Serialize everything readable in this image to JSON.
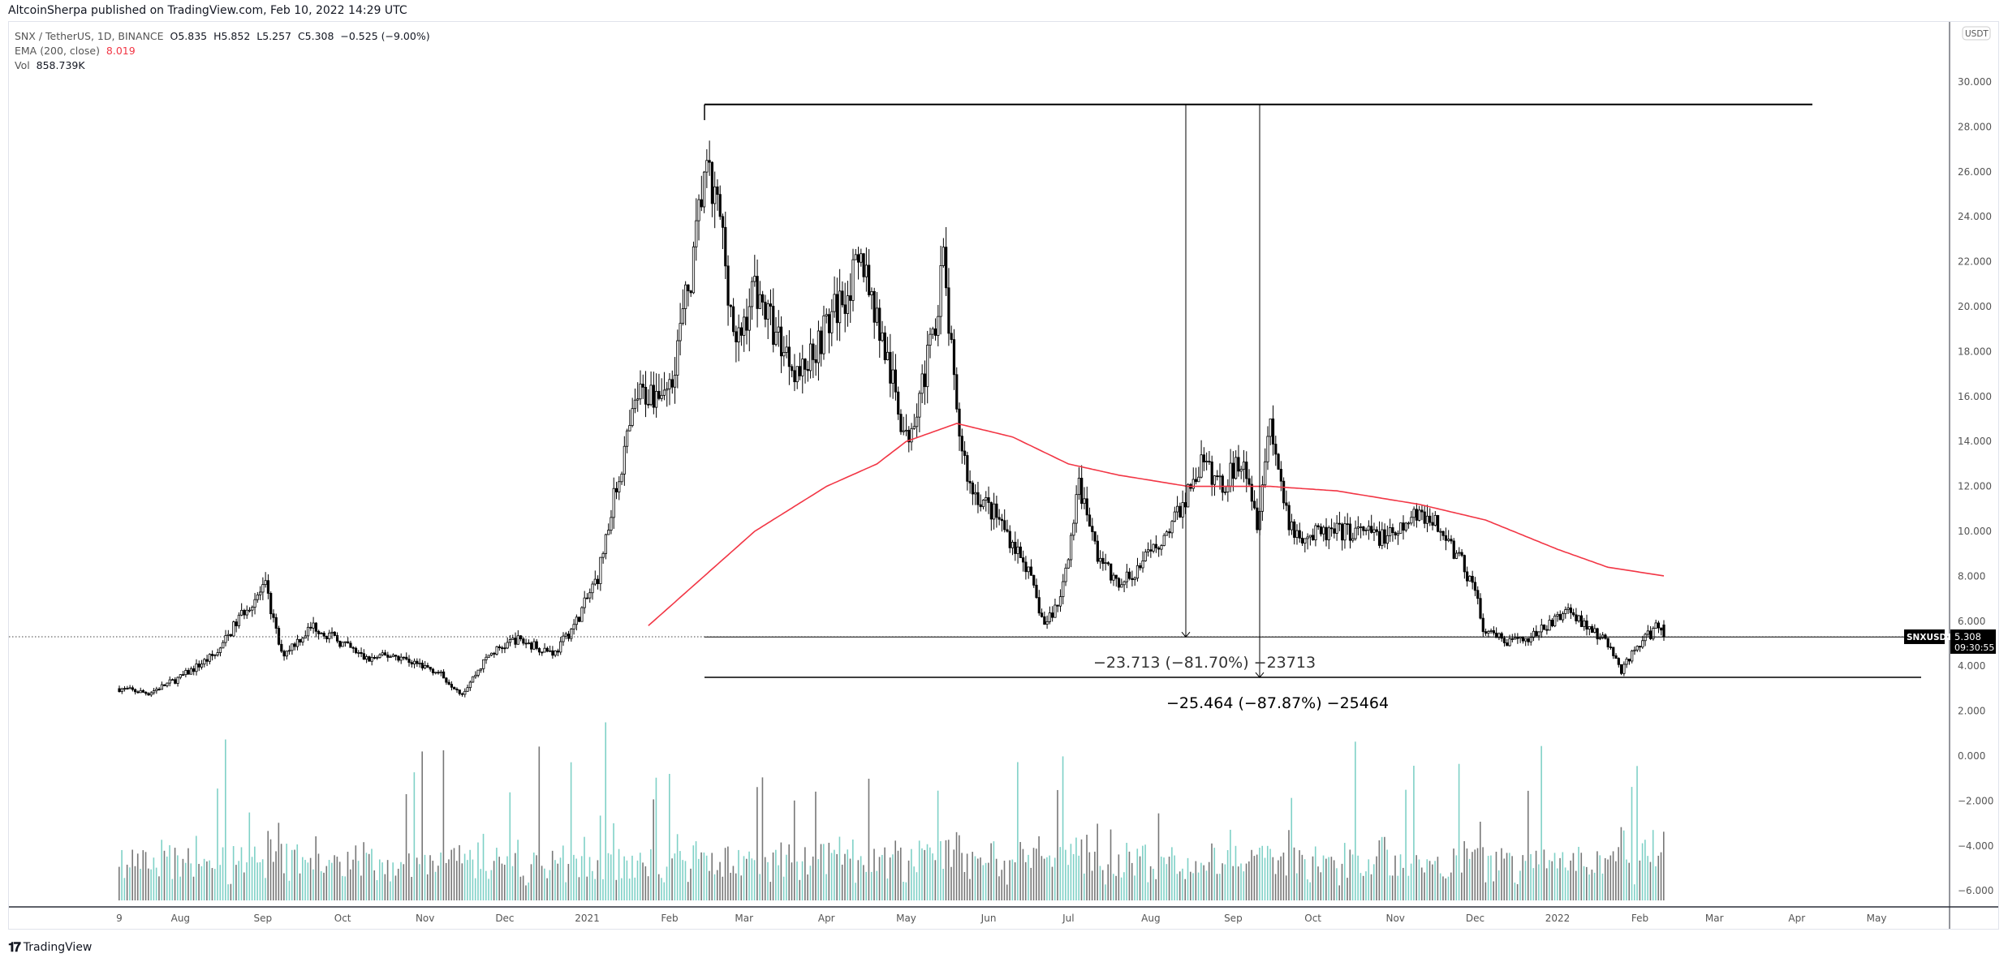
{
  "header": {
    "published": "AltcoinSherpa published on TradingView.com, Feb 10, 2022 14:29 UTC"
  },
  "legend": {
    "symbol": "SNX / TetherUS, 1D, BINANCE",
    "open": "O5.835",
    "high": "H5.852",
    "low": "L5.257",
    "close": "C5.308",
    "change": "−0.525 (−9.00%)",
    "ema_label": "EMA (200, close)",
    "ema_value": "8.019",
    "vol_label": "Vol",
    "vol_value": "858.739K"
  },
  "price_axis": {
    "currency_badge": "USDT",
    "ticks": [
      "30.000",
      "28.000",
      "26.000",
      "24.000",
      "22.000",
      "20.000",
      "18.000",
      "16.000",
      "14.000",
      "12.000",
      "10.000",
      "8.000",
      "6.000",
      "4.000",
      "2.000",
      "0.000",
      "−2.000",
      "−4.000",
      "−6.000"
    ],
    "symbol_tag": "SNXUSDT",
    "last_price": "5.308",
    "countdown": "09:30:55"
  },
  "time_axis": {
    "ticks": [
      {
        "label": "9",
        "date": "2020-07-09"
      },
      {
        "label": "Aug",
        "date": "2020-08-01"
      },
      {
        "label": "Sep",
        "date": "2020-09-01"
      },
      {
        "label": "Oct",
        "date": "2020-10-01"
      },
      {
        "label": "Nov",
        "date": "2020-11-01"
      },
      {
        "label": "Dec",
        "date": "2020-12-01"
      },
      {
        "label": "2021",
        "date": "2021-01-01"
      },
      {
        "label": "Feb",
        "date": "2021-02-01"
      },
      {
        "label": "Mar",
        "date": "2021-03-01"
      },
      {
        "label": "Apr",
        "date": "2021-04-01"
      },
      {
        "label": "May",
        "date": "2021-05-01"
      },
      {
        "label": "Jun",
        "date": "2021-06-01"
      },
      {
        "label": "Jul",
        "date": "2021-07-01"
      },
      {
        "label": "Aug",
        "date": "2021-08-01"
      },
      {
        "label": "Sep",
        "date": "2021-09-01"
      },
      {
        "label": "Oct",
        "date": "2021-10-01"
      },
      {
        "label": "Nov",
        "date": "2021-11-01"
      },
      {
        "label": "Dec",
        "date": "2021-12-01"
      },
      {
        "label": "2022",
        "date": "2022-01-01"
      },
      {
        "label": "Feb",
        "date": "2022-02-01"
      },
      {
        "label": "Mar",
        "date": "2022-03-01"
      },
      {
        "label": "Apr",
        "date": "2022-04-01"
      },
      {
        "label": "May",
        "date": "2022-05-01"
      }
    ]
  },
  "drawings": {
    "top_level": 29.0,
    "mid_level": 5.3,
    "bottom_level": 3.5,
    "measure_1": {
      "label": "−23.713 (−81.70%) −23713",
      "date": "2021-08-17"
    },
    "measure_2": {
      "label": "−25.464 (−87.87%) −25464",
      "date": "2021-09-14"
    }
  },
  "footer": {
    "brand": "TradingView"
  },
  "colors": {
    "candle": "#000000",
    "ema": "#f23645",
    "volume_up": "#7fd1c7",
    "volume_down": "#777777",
    "grid": "#e0e3eb"
  },
  "chart_data": {
    "type": "candlestick",
    "symbol": "SNX / TetherUS",
    "interval": "1D",
    "ylim": [
      -7,
      31
    ],
    "grid": false,
    "price_path": [
      [
        "2020-07-09",
        3.0
      ],
      [
        "2020-07-20",
        2.8
      ],
      [
        "2020-08-01",
        3.5
      ],
      [
        "2020-08-15",
        4.6
      ],
      [
        "2020-08-25",
        6.5
      ],
      [
        "2020-09-02",
        7.5
      ],
      [
        "2020-09-08",
        4.5
      ],
      [
        "2020-09-20",
        5.8
      ],
      [
        "2020-10-01",
        5.0
      ],
      [
        "2020-10-10",
        4.3
      ],
      [
        "2020-10-20",
        4.5
      ],
      [
        "2020-11-05",
        3.8
      ],
      [
        "2020-11-15",
        2.8
      ],
      [
        "2020-11-25",
        4.5
      ],
      [
        "2020-12-05",
        5.2
      ],
      [
        "2020-12-20",
        4.6
      ],
      [
        "2020-12-28",
        6.0
      ],
      [
        "2021-01-05",
        8.0
      ],
      [
        "2021-01-12",
        12.0
      ],
      [
        "2021-01-20",
        16.0
      ],
      [
        "2021-02-01",
        16.5
      ],
      [
        "2021-02-10",
        22.0
      ],
      [
        "2021-02-14",
        26.0
      ],
      [
        "2021-02-20",
        24.0
      ],
      [
        "2021-02-26",
        18.0
      ],
      [
        "2021-03-05",
        21.0
      ],
      [
        "2021-03-12",
        19.0
      ],
      [
        "2021-03-22",
        17.0
      ],
      [
        "2021-04-05",
        20.0
      ],
      [
        "2021-04-15",
        22.0
      ],
      [
        "2021-04-25",
        17.0
      ],
      [
        "2021-05-01",
        14.0
      ],
      [
        "2021-05-10",
        18.0
      ],
      [
        "2021-05-15",
        22.0
      ],
      [
        "2021-05-20",
        15.0
      ],
      [
        "2021-05-25",
        12.0
      ],
      [
        "2021-06-05",
        10.5
      ],
      [
        "2021-06-15",
        8.5
      ],
      [
        "2021-06-22",
        5.8
      ],
      [
        "2021-06-28",
        7.0
      ],
      [
        "2021-07-05",
        12.0
      ],
      [
        "2021-07-12",
        9.0
      ],
      [
        "2021-07-20",
        7.5
      ],
      [
        "2021-08-01",
        9.0
      ],
      [
        "2021-08-10",
        10.5
      ],
      [
        "2021-08-20",
        13.0
      ],
      [
        "2021-08-28",
        12.0
      ],
      [
        "2021-09-05",
        13.5
      ],
      [
        "2021-09-10",
        10.5
      ],
      [
        "2021-09-15",
        15.0
      ],
      [
        "2021-09-22",
        10.0
      ],
      [
        "2021-10-01",
        9.8
      ],
      [
        "2021-10-15",
        10.0
      ],
      [
        "2021-11-01",
        9.7
      ],
      [
        "2021-11-10",
        11.0
      ],
      [
        "2021-11-20",
        9.8
      ],
      [
        "2021-12-01",
        7.5
      ],
      [
        "2021-12-04",
        5.5
      ],
      [
        "2021-12-15",
        5.0
      ],
      [
        "2021-12-25",
        5.5
      ],
      [
        "2022-01-05",
        6.5
      ],
      [
        "2022-01-10",
        6.0
      ],
      [
        "2022-01-20",
        5.0
      ],
      [
        "2022-01-25",
        3.8
      ],
      [
        "2022-02-01",
        5.0
      ],
      [
        "2022-02-08",
        5.8
      ],
      [
        "2022-02-10",
        5.308
      ]
    ],
    "ema_200": [
      [
        "2021-01-24",
        5.8
      ],
      [
        "2021-03-05",
        10.0
      ],
      [
        "2021-04-01",
        12.0
      ],
      [
        "2021-04-20",
        13.0
      ],
      [
        "2021-05-01",
        14.0
      ],
      [
        "2021-05-20",
        14.8
      ],
      [
        "2021-06-10",
        14.2
      ],
      [
        "2021-07-01",
        13.0
      ],
      [
        "2021-07-20",
        12.5
      ],
      [
        "2021-08-15",
        12.0
      ],
      [
        "2021-09-15",
        12.0
      ],
      [
        "2021-10-10",
        11.8
      ],
      [
        "2021-11-10",
        11.2
      ],
      [
        "2021-12-05",
        10.5
      ],
      [
        "2022-01-01",
        9.2
      ],
      [
        "2022-01-20",
        8.4
      ],
      [
        "2022-02-10",
        8.019
      ]
    ]
  }
}
